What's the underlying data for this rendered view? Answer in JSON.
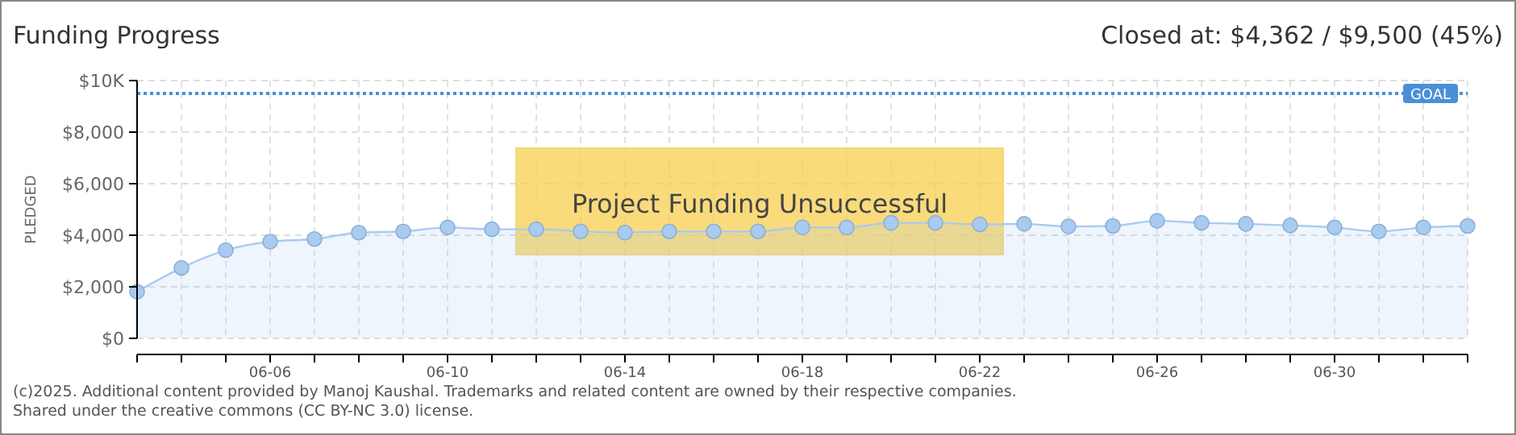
{
  "chart_data": {
    "type": "area",
    "title": "Funding Progress",
    "subtitle": "Closed at: $4,362 / $9,500 (45%)",
    "ylabel": "PLEDGED",
    "x": [
      "--06-03",
      "--06-04",
      "--06-05",
      "--06-06",
      "--06-07",
      "--06-08",
      "--06-09",
      "--06-10",
      "--06-11",
      "--06-12",
      "--06-13",
      "--06-14",
      "--06-15",
      "--06-16",
      "--06-17",
      "--06-18",
      "--06-19",
      "--06-20",
      "--06-21",
      "--06-22",
      "--06-23",
      "--06-24",
      "--06-25",
      "--06-26",
      "--06-27",
      "--06-28",
      "--06-29",
      "--06-30",
      "--07-01",
      "--07-02",
      "--07-03"
    ],
    "series": [
      {
        "color": "#a9cbf0",
        "values": [
          1810,
          2730,
          3420,
          3750,
          3850,
          4100,
          4150,
          4300,
          4230,
          4230,
          4150,
          4100,
          4150,
          4150,
          4150,
          4300,
          4300,
          4480,
          4480,
          4420,
          4440,
          4340,
          4360,
          4560,
          4480,
          4440,
          4380,
          4300,
          4150,
          4300,
          4360
        ]
      }
    ],
    "xlim": [
      "--06-03",
      "--07-03"
    ],
    "xticks": [
      {
        "value": "--06-03",
        "label": null
      },
      {
        "value": "--06-04",
        "label": null
      },
      {
        "value": "--06-05",
        "label": null
      },
      {
        "value": "--06-06",
        "label": "06-06"
      },
      {
        "value": "--06-07",
        "label": null
      },
      {
        "value": "--06-08",
        "label": null
      },
      {
        "value": "--06-09",
        "label": null
      },
      {
        "value": "--06-10",
        "label": "06-10"
      },
      {
        "value": "--06-11",
        "label": null
      },
      {
        "value": "--06-12",
        "label": null
      },
      {
        "value": "--06-13",
        "label": null
      },
      {
        "value": "--06-14",
        "label": "06-14"
      },
      {
        "value": "--06-15",
        "label": null
      },
      {
        "value": "--06-16",
        "label": null
      },
      {
        "value": "--06-17",
        "label": null
      },
      {
        "value": "--06-18",
        "label": "06-18"
      },
      {
        "value": "--06-19",
        "label": null
      },
      {
        "value": "--06-20",
        "label": null
      },
      {
        "value": "--06-21",
        "label": null
      },
      {
        "value": "--06-22",
        "label": "06-22"
      },
      {
        "value": "--06-23",
        "label": null
      },
      {
        "value": "--06-24",
        "label": null
      },
      {
        "value": "--06-25",
        "label": null
      },
      {
        "value": "--06-26",
        "label": "06-26"
      },
      {
        "value": "--06-27",
        "label": null
      },
      {
        "value": "--06-28",
        "label": null
      },
      {
        "value": "--06-29",
        "label": null
      },
      {
        "value": "--06-30",
        "label": "06-30"
      },
      {
        "value": "--07-01",
        "label": null
      },
      {
        "value": "--07-02",
        "label": null
      },
      {
        "value": "--07-03",
        "label": null
      }
    ],
    "ylim": [
      0,
      10000
    ],
    "yticks": [
      {
        "value": 0,
        "label": "$0"
      },
      {
        "value": 2000,
        "label": "$2,000"
      },
      {
        "value": 4000,
        "label": "$4,000"
      },
      {
        "value": 6000,
        "label": "$6,000"
      },
      {
        "value": 8000,
        "label": "$8,000"
      },
      {
        "value": 10000,
        "label": "$10K"
      }
    ],
    "ref_lines": [
      {
        "axis": "y",
        "value": 9500,
        "label": "GOAL",
        "color": "#4a8fd8",
        "line_style": "dotted"
      }
    ],
    "annotations": [
      "Project Funding Unsuccessful",
      "(c)2025. Additional content provided by Manoj Kaushal. Trademarks and related content are owned by their respective companies.",
      "Shared under the creative commons (CC BY-NC 3.0) license."
    ],
    "grid": true,
    "marker": "circle"
  }
}
